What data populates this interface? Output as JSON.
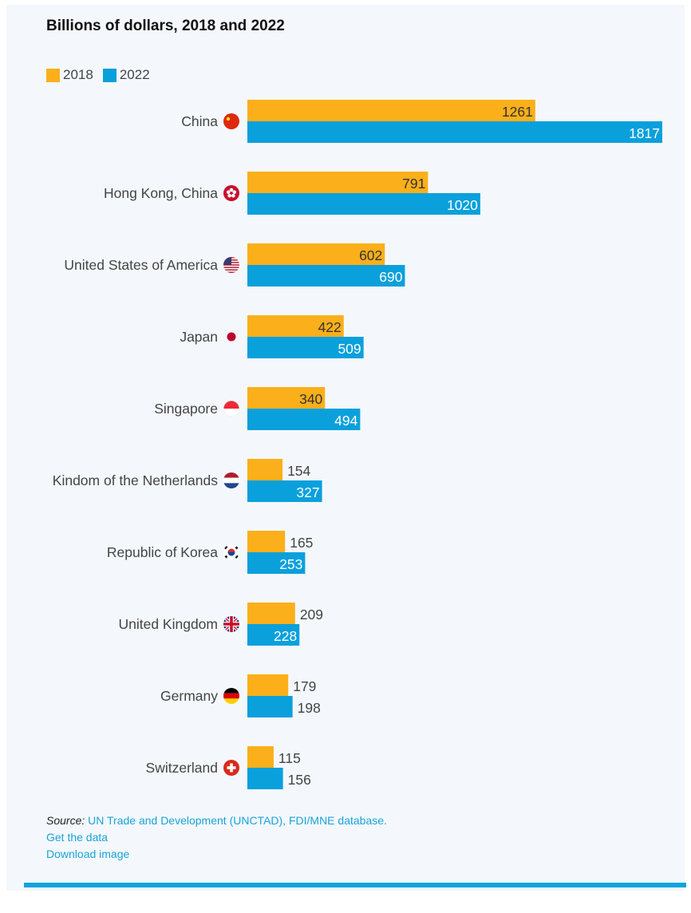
{
  "chart_data": {
    "type": "bar",
    "orientation": "horizontal",
    "title": "Billions of dollars, 2018 and 2022",
    "categories": [
      "China",
      "Hong Kong, China",
      "United States of America",
      "Japan",
      "Singapore",
      "Kindom of the Netherlands",
      "Republic of Korea",
      "United Kingdom",
      "Germany",
      "Switzerland"
    ],
    "category_icons": [
      "china-flag-icon",
      "hong-kong-flag-icon",
      "usa-flag-icon",
      "japan-flag-icon",
      "singapore-flag-icon",
      "netherlands-flag-icon",
      "korea-flag-icon",
      "uk-flag-icon",
      "germany-flag-icon",
      "switzerland-flag-icon"
    ],
    "series": [
      {
        "name": "2018",
        "color": "#fbaf1a",
        "values": [
          1261,
          791,
          602,
          422,
          340,
          154,
          165,
          209,
          179,
          115
        ]
      },
      {
        "name": "2022",
        "color": "#0aa0dc",
        "values": [
          1817,
          1020,
          690,
          509,
          494,
          327,
          253,
          228,
          198,
          156
        ]
      }
    ],
    "xlim": [
      0,
      1817
    ],
    "grid": false,
    "legend_placement": "top-left"
  },
  "source": {
    "label": "Source:",
    "text": "UN Trade and Development (UNCTAD), FDI/MNE database."
  },
  "links": {
    "get_data": "Get the data",
    "download_image": "Download image"
  }
}
